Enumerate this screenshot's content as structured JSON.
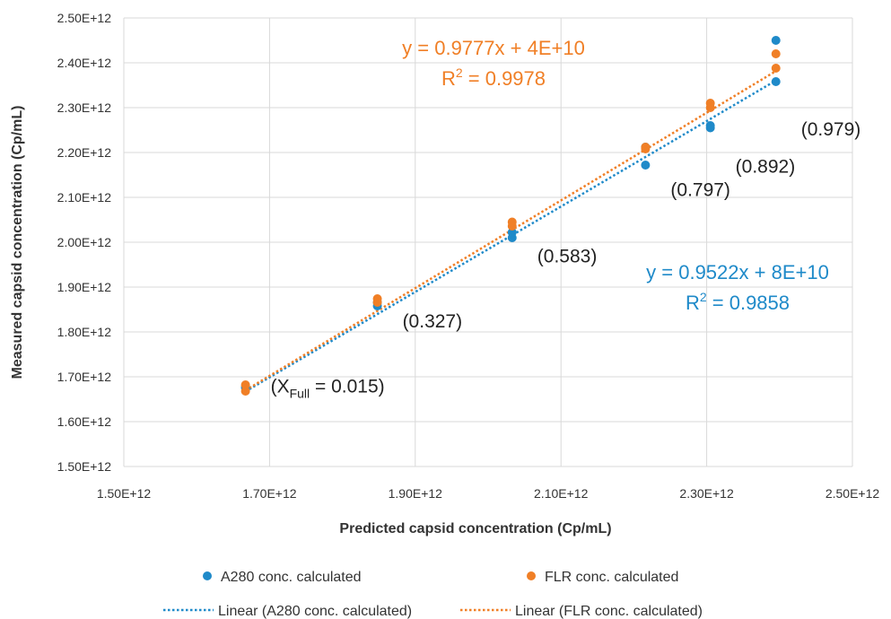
{
  "chart_data": {
    "type": "scatter",
    "xlabel": "Predicted capsid concentration (Cp/mL)",
    "ylabel": "Measured capsid concentration (Cp/mL)",
    "xlim": [
      1500000000000.0,
      2500000000000.0
    ],
    "ylim": [
      1500000000000.0,
      2500000000000.0
    ],
    "xticks": [
      1500000000000.0,
      1700000000000.0,
      1900000000000.0,
      2100000000000.0,
      2300000000000.0,
      2500000000000.0
    ],
    "xtick_labels": [
      "1.50E+12",
      "1.70E+12",
      "1.90E+12",
      "2.10E+12",
      "2.30E+12",
      "2.50E+12"
    ],
    "yticks": [
      1500000000000.0,
      1600000000000.0,
      1700000000000.0,
      1800000000000.0,
      1900000000000.0,
      2000000000000.0,
      2100000000000.0,
      2200000000000.0,
      2300000000000.0,
      2400000000000.0,
      2500000000000.0
    ],
    "ytick_labels": [
      "1.50E+12",
      "1.60E+12",
      "1.70E+12",
      "1.80E+12",
      "1.90E+12",
      "2.00E+12",
      "2.10E+12",
      "2.20E+12",
      "2.30E+12",
      "2.40E+12",
      "2.50E+12"
    ],
    "grid": true,
    "legend_position": "bottom",
    "series": [
      {
        "name": "A280 conc. calculated",
        "color": "#1f8ac9",
        "points": [
          [
            1667000000000.0,
            1675000000000.0
          ],
          [
            1667000000000.0,
            1678000000000.0
          ],
          [
            1848000000000.0,
            1858000000000.0
          ],
          [
            1848000000000.0,
            1866000000000.0
          ],
          [
            2033000000000.0,
            2010000000000.0
          ],
          [
            2033000000000.0,
            2022000000000.0
          ],
          [
            2216000000000.0,
            2172000000000.0
          ],
          [
            2216000000000.0,
            2212000000000.0
          ],
          [
            2305000000000.0,
            2255000000000.0
          ],
          [
            2305000000000.0,
            2260000000000.0
          ],
          [
            2395000000000.0,
            2358000000000.0
          ],
          [
            2395000000000.0,
            2450000000000.0
          ]
        ]
      },
      {
        "name": "FLR conc. calculated",
        "color": "#f07f26",
        "points": [
          [
            1667000000000.0,
            1668000000000.0
          ],
          [
            1667000000000.0,
            1682000000000.0
          ],
          [
            1848000000000.0,
            1866000000000.0
          ],
          [
            1848000000000.0,
            1874000000000.0
          ],
          [
            2033000000000.0,
            2036000000000.0
          ],
          [
            2033000000000.0,
            2045000000000.0
          ],
          [
            2216000000000.0,
            2208000000000.0
          ],
          [
            2216000000000.0,
            2212000000000.0
          ],
          [
            2305000000000.0,
            2300000000000.0
          ],
          [
            2305000000000.0,
            2310000000000.0
          ],
          [
            2395000000000.0,
            2388000000000.0
          ],
          [
            2395000000000.0,
            2420000000000.0
          ]
        ]
      }
    ],
    "trendlines": [
      {
        "name": "Linear (A280 conc. calculated)",
        "series": "A280 conc. calculated",
        "slope": 0.9522,
        "intercept": 80000000000.0,
        "x_range": [
          1667000000000.0,
          2395000000000.0
        ],
        "color": "#1f8ac9",
        "equation": "y = 0.9522x + 8E+10",
        "r2_prefix": "R",
        "r2_sup": "2",
        "r2_value": " = 0.9858"
      },
      {
        "name": "Linear (FLR conc. calculated)",
        "series": "FLR conc. calculated",
        "slope": 0.9777,
        "intercept": 40000000000.0,
        "x_range": [
          1667000000000.0,
          2395000000000.0
        ],
        "color": "#f07f26",
        "equation": "y = 0.9777x + 4E+10",
        "r2_prefix": "R",
        "r2_sup": "2",
        "r2_value": " = 0.9978"
      }
    ],
    "annotations": [
      {
        "prefix": "(X",
        "sub": "Full",
        "text": " = 0.015)",
        "x": 1667000000000.0,
        "y": 1665000000000.0
      },
      {
        "text": "(0.327)",
        "x": 1848000000000.0,
        "y": 1810000000000.0
      },
      {
        "text": "(0.583)",
        "x": 2033000000000.0,
        "y": 1955000000000.0
      },
      {
        "text": "(0.797)",
        "x": 2216000000000.0,
        "y": 2103000000000.0
      },
      {
        "text": "(0.892)",
        "x": 2305000000000.0,
        "y": 2155000000000.0
      },
      {
        "text": "(0.979)",
        "x": 2395000000000.0,
        "y": 2238000000000.0
      }
    ]
  }
}
